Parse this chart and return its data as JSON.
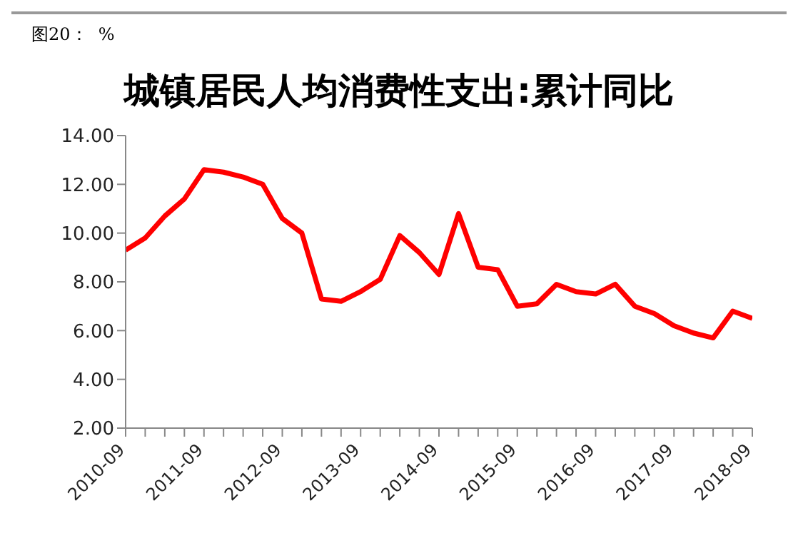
{
  "chart_data": {
    "type": "line",
    "title": "城镇居民人均消费性支出:累计同比",
    "annotations": [
      "图20：  %"
    ],
    "categories": [
      "2010-09",
      null,
      null,
      null,
      "2011-09",
      null,
      null,
      null,
      "2012-09",
      null,
      null,
      null,
      "2013-09",
      null,
      null,
      null,
      "2014-09",
      null,
      null,
      null,
      "2015-09",
      null,
      null,
      null,
      "2016-09",
      null,
      null,
      null,
      "2017-09",
      null,
      null,
      null,
      "2018-09"
    ],
    "series": [
      {
        "color": "#ff0000",
        "values": [
          9.3,
          9.8,
          10.7,
          11.4,
          12.6,
          12.5,
          12.3,
          12.0,
          10.6,
          10.0,
          7.3,
          7.2,
          7.6,
          8.1,
          9.9,
          9.2,
          8.3,
          10.8,
          8.6,
          8.5,
          7.0,
          7.1,
          7.9,
          7.6,
          7.5,
          7.9,
          7.0,
          6.7,
          6.2,
          5.9,
          5.7,
          6.8,
          6.5
        ]
      }
    ],
    "ylim": [
      2,
      14
    ],
    "yticks": [
      {
        "value": 2,
        "label": "2.00"
      },
      {
        "value": 4,
        "label": "4.00"
      },
      {
        "value": 6,
        "label": "6.00"
      },
      {
        "value": 8,
        "label": "8.00"
      },
      {
        "value": 10,
        "label": "10.00"
      },
      {
        "value": 12,
        "label": "12.00"
      },
      {
        "value": 14,
        "label": "14.00"
      }
    ],
    "grid": false,
    "marker": "none",
    "line_style": "solid"
  }
}
